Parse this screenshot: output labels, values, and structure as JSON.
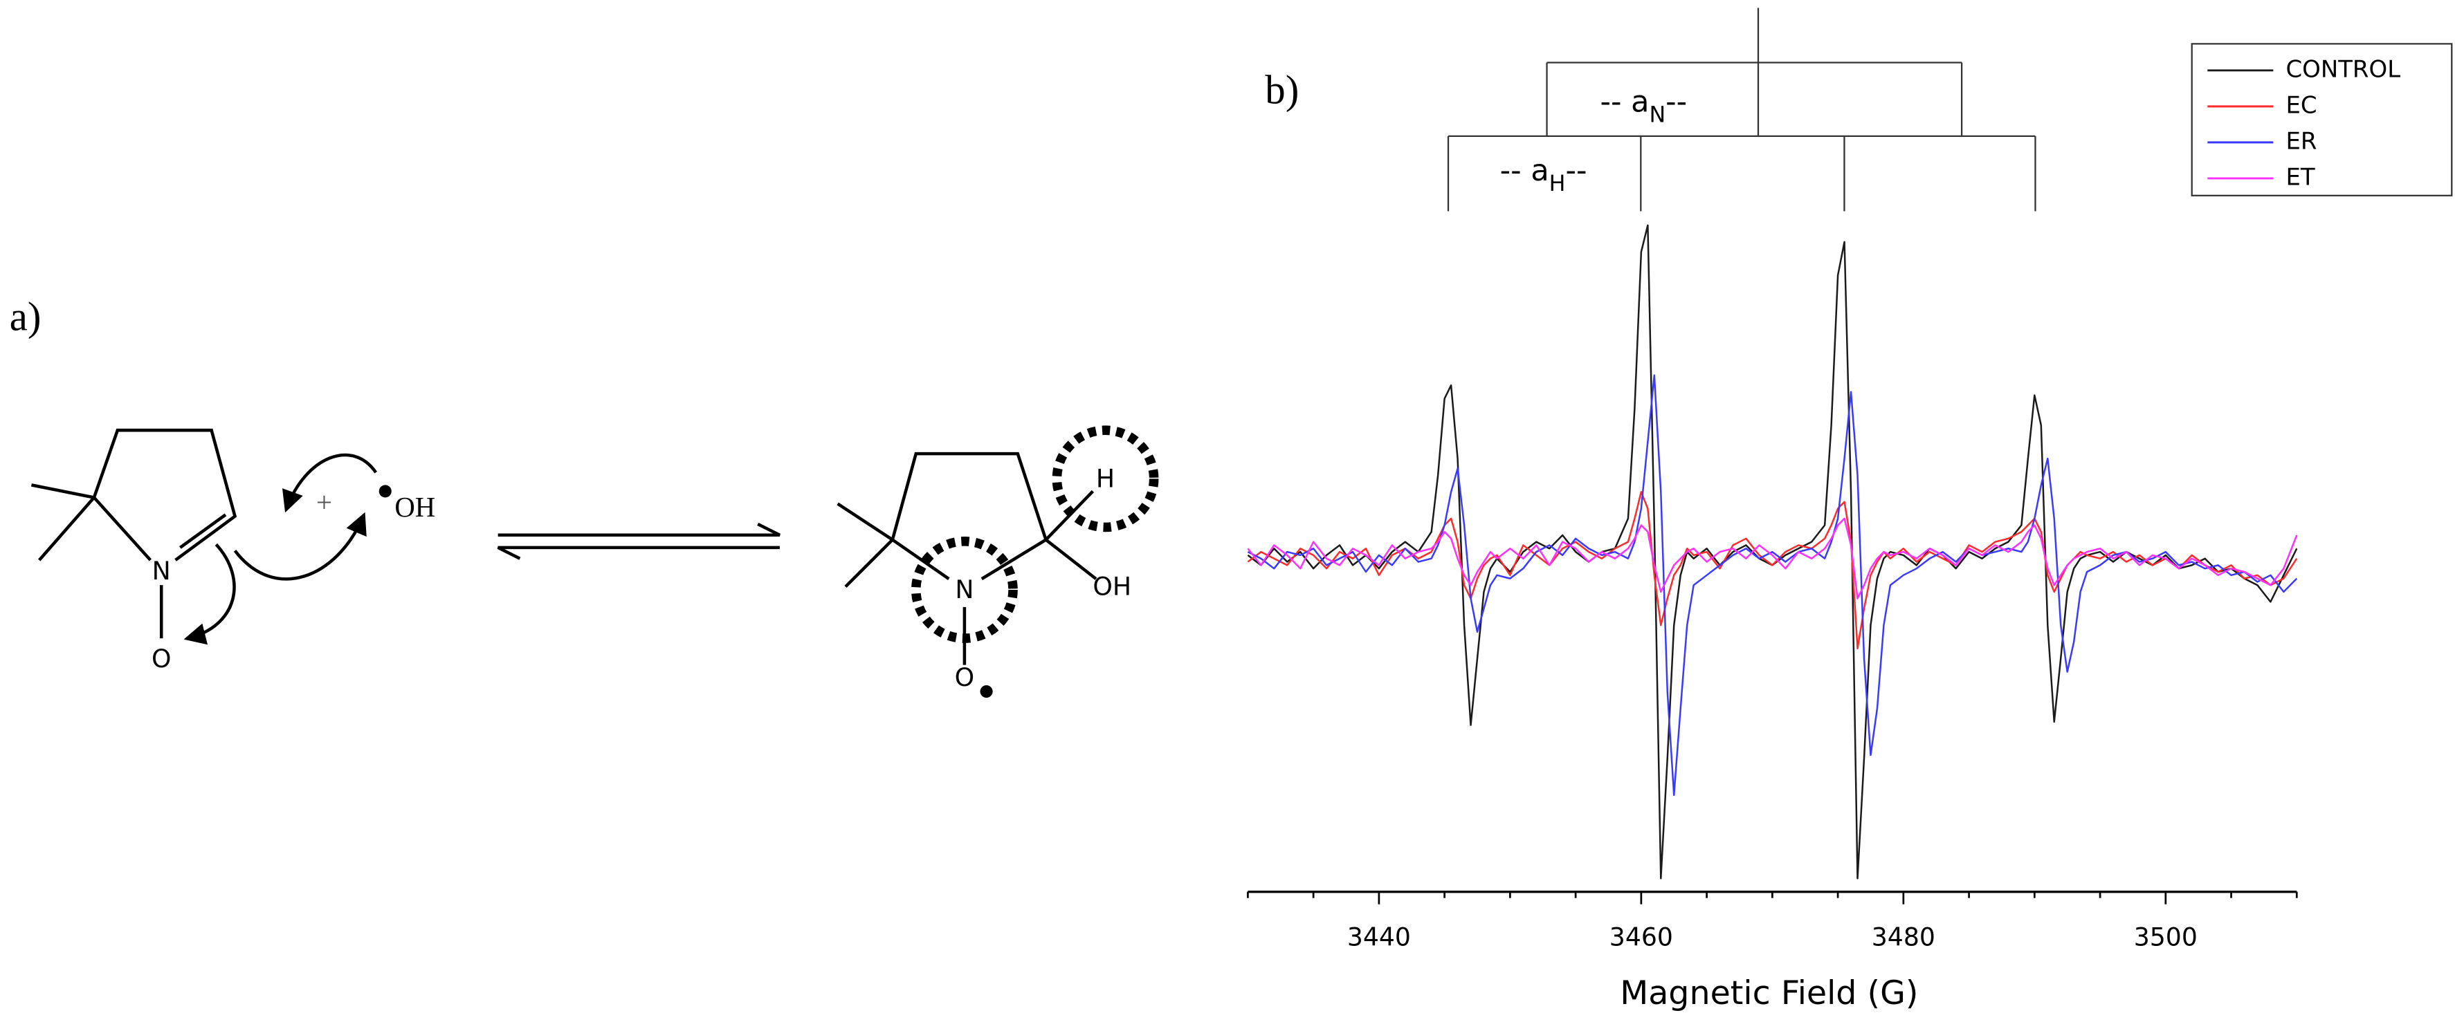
{
  "scheme": {
    "label": "a)",
    "reactant": {
      "nitrogen": "N",
      "oxygen": "O"
    },
    "plus": "+",
    "radical": "OH",
    "product": {
      "nitrogen": "N",
      "oxygen": "O",
      "hydrogen": "H",
      "hydroxyl": "OH"
    }
  },
  "chart_data": {
    "type": "line",
    "panel_label": "b)",
    "x_label": "Magnetic Field (G)",
    "splitting_labels": [
      {
        "prefix": "-- a",
        "subscript": "N",
        "suffix": "--"
      },
      {
        "prefix": "-- a",
        "subscript": "H",
        "suffix": "--"
      }
    ],
    "xlim": [
      3430,
      3510
    ],
    "xticks": [
      3440,
      3460,
      3480,
      3500
    ],
    "xminorticks": [
      3430,
      3435,
      3445,
      3450,
      3455,
      3465,
      3470,
      3475,
      3485,
      3490,
      3495,
      3505,
      3510
    ],
    "ylim": [
      -1,
      1
    ],
    "legend": "upper right",
    "x": [
      3430,
      3431,
      3432,
      3433,
      3434,
      3435,
      3436,
      3437,
      3438,
      3439,
      3440,
      3441,
      3442,
      3443,
      3444,
      3444.5,
      3445,
      3445.5,
      3446,
      3446.5,
      3447,
      3447.5,
      3448,
      3448.5,
      3449,
      3450,
      3451,
      3452,
      3453,
      3454,
      3455,
      3456,
      3457,
      3458,
      3459,
      3459.5,
      3460,
      3460.5,
      3461,
      3461.5,
      3462,
      3462.5,
      3463,
      3463.5,
      3464,
      3465,
      3466,
      3467,
      3468,
      3469,
      3470,
      3471,
      3472,
      3473,
      3474,
      3474.5,
      3475,
      3475.5,
      3476,
      3476.5,
      3477,
      3477.5,
      3478,
      3478.5,
      3479,
      3480,
      3481,
      3482,
      3483,
      3484,
      3485,
      3486,
      3487,
      3488,
      3489,
      3489.5,
      3490,
      3490.5,
      3491,
      3491.5,
      3492,
      3492.5,
      3493,
      3493.5,
      3494,
      3495,
      3496,
      3497,
      3498,
      3499,
      3500,
      3501,
      3502,
      3503,
      3504,
      3505,
      3506,
      3507,
      3508,
      3509,
      3510
    ],
    "series": [
      {
        "name": "CONTROL",
        "color": "#1a1a1a",
        "values": [
          0.01,
          -0.02,
          0.03,
          -0.01,
          0.02,
          -0.03,
          0.01,
          0.04,
          -0.02,
          0.01,
          -0.03,
          0.02,
          0.05,
          0.02,
          0.08,
          0.25,
          0.48,
          0.52,
          0.3,
          -0.2,
          -0.5,
          -0.3,
          -0.1,
          -0.03,
          0.0,
          -0.04,
          0.02,
          0.05,
          0.03,
          0.07,
          0.02,
          -0.01,
          0.02,
          0.03,
          0.12,
          0.45,
          0.92,
          1.0,
          0.1,
          -0.96,
          -0.6,
          -0.2,
          -0.05,
          0.02,
          0.0,
          0.03,
          -0.02,
          0.02,
          0.04,
          0.0,
          -0.02,
          0.01,
          0.03,
          0.05,
          0.1,
          0.4,
          0.85,
          0.95,
          0.2,
          -0.96,
          -0.6,
          -0.2,
          -0.06,
          0.0,
          0.02,
          0.01,
          -0.02,
          0.03,
          0.01,
          -0.03,
          0.02,
          0.0,
          0.03,
          0.05,
          0.1,
          0.3,
          0.49,
          0.4,
          -0.2,
          -0.49,
          -0.3,
          -0.1,
          -0.03,
          0.0,
          0.01,
          0.02,
          -0.01,
          0.02,
          0.0,
          -0.02,
          0.01,
          -0.03,
          -0.02,
          0.0,
          -0.04,
          -0.03,
          -0.06,
          -0.08,
          -0.13,
          -0.05,
          0.03
        ]
      },
      {
        "name": "EC",
        "color": "#ff2a2a",
        "values": [
          -0.01,
          0.02,
          0.0,
          -0.02,
          0.03,
          0.01,
          -0.03,
          0.02,
          0.0,
          0.03,
          -0.05,
          0.01,
          0.03,
          0.0,
          0.02,
          0.06,
          0.1,
          0.12,
          0.05,
          -0.08,
          -0.12,
          -0.06,
          -0.02,
          0.0,
          0.01,
          -0.05,
          0.04,
          0.01,
          -0.02,
          0.03,
          0.05,
          0.02,
          0.0,
          0.03,
          0.05,
          0.12,
          0.2,
          0.15,
          -0.05,
          -0.2,
          -0.12,
          -0.05,
          -0.02,
          0.03,
          0.01,
          0.02,
          -0.03,
          0.04,
          0.06,
          0.01,
          -0.02,
          0.02,
          0.04,
          0.03,
          0.06,
          0.1,
          0.15,
          0.17,
          0.05,
          -0.27,
          -0.15,
          -0.05,
          -0.01,
          0.02,
          0.0,
          0.03,
          -0.01,
          0.02,
          0.0,
          -0.02,
          0.04,
          0.02,
          0.05,
          0.06,
          0.08,
          0.1,
          0.12,
          0.08,
          -0.05,
          -0.1,
          -0.06,
          -0.02,
          0.0,
          0.02,
          0.01,
          0.0,
          0.02,
          -0.01,
          0.01,
          -0.02,
          0.0,
          -0.03,
          0.01,
          -0.02,
          -0.04,
          -0.02,
          -0.06,
          -0.05,
          -0.08,
          -0.06,
          0.0
        ]
      },
      {
        "name": "ER",
        "color": "#3a3aff",
        "values": [
          0.02,
          0.0,
          -0.03,
          0.02,
          0.01,
          0.03,
          -0.02,
          0.0,
          0.02,
          -0.04,
          0.01,
          -0.02,
          0.03,
          -0.01,
          0.0,
          0.04,
          0.1,
          0.2,
          0.27,
          0.1,
          -0.12,
          -0.22,
          -0.15,
          -0.08,
          -0.05,
          -0.06,
          -0.03,
          0.02,
          0.04,
          0.01,
          0.06,
          0.03,
          0.01,
          0.02,
          0.0,
          0.05,
          0.15,
          0.35,
          0.55,
          0.2,
          -0.4,
          -0.71,
          -0.45,
          -0.2,
          -0.08,
          -0.05,
          -0.02,
          0.01,
          0.03,
          0.0,
          0.02,
          -0.01,
          0.02,
          0.03,
          0.0,
          0.05,
          0.12,
          0.3,
          0.5,
          0.25,
          -0.3,
          -0.59,
          -0.45,
          -0.2,
          -0.08,
          -0.05,
          -0.03,
          0.0,
          0.02,
          -0.01,
          0.03,
          0.01,
          0.02,
          0.03,
          0.02,
          0.05,
          0.12,
          0.22,
          0.3,
          0.12,
          -0.2,
          -0.34,
          -0.25,
          -0.1,
          -0.04,
          -0.02,
          0.01,
          0.02,
          -0.01,
          0.0,
          0.02,
          -0.02,
          -0.01,
          -0.03,
          -0.02,
          -0.05,
          -0.04,
          -0.07,
          -0.05,
          -0.1,
          -0.06
        ]
      },
      {
        "name": "ET",
        "color": "#ff30ff",
        "values": [
          0.03,
          -0.02,
          0.04,
          0.01,
          -0.03,
          0.05,
          0.0,
          -0.02,
          0.03,
          0.01,
          -0.02,
          0.04,
          0.0,
          0.02,
          0.03,
          0.05,
          0.08,
          0.06,
          0.0,
          -0.05,
          -0.08,
          -0.04,
          -0.01,
          0.02,
          0.0,
          0.03,
          0.0,
          0.04,
          -0.02,
          0.05,
          0.03,
          -0.01,
          0.02,
          0.0,
          0.03,
          0.06,
          0.1,
          0.08,
          -0.02,
          -0.1,
          -0.06,
          -0.02,
          0.0,
          0.02,
          0.03,
          -0.01,
          0.02,
          0.03,
          0.0,
          0.04,
          0.01,
          -0.03,
          0.02,
          0.0,
          0.03,
          0.06,
          0.1,
          0.12,
          0.04,
          -0.12,
          -0.08,
          -0.03,
          0.0,
          0.02,
          0.01,
          0.02,
          0.0,
          0.03,
          0.01,
          -0.02,
          0.03,
          0.01,
          0.04,
          0.02,
          0.05,
          0.08,
          0.1,
          0.06,
          -0.03,
          -0.08,
          -0.05,
          -0.02,
          0.0,
          0.01,
          0.02,
          0.03,
          0.0,
          0.02,
          -0.02,
          0.01,
          0.0,
          -0.03,
          0.0,
          -0.02,
          -0.05,
          -0.03,
          -0.04,
          -0.06,
          -0.08,
          -0.03,
          0.07
        ]
      }
    ]
  }
}
